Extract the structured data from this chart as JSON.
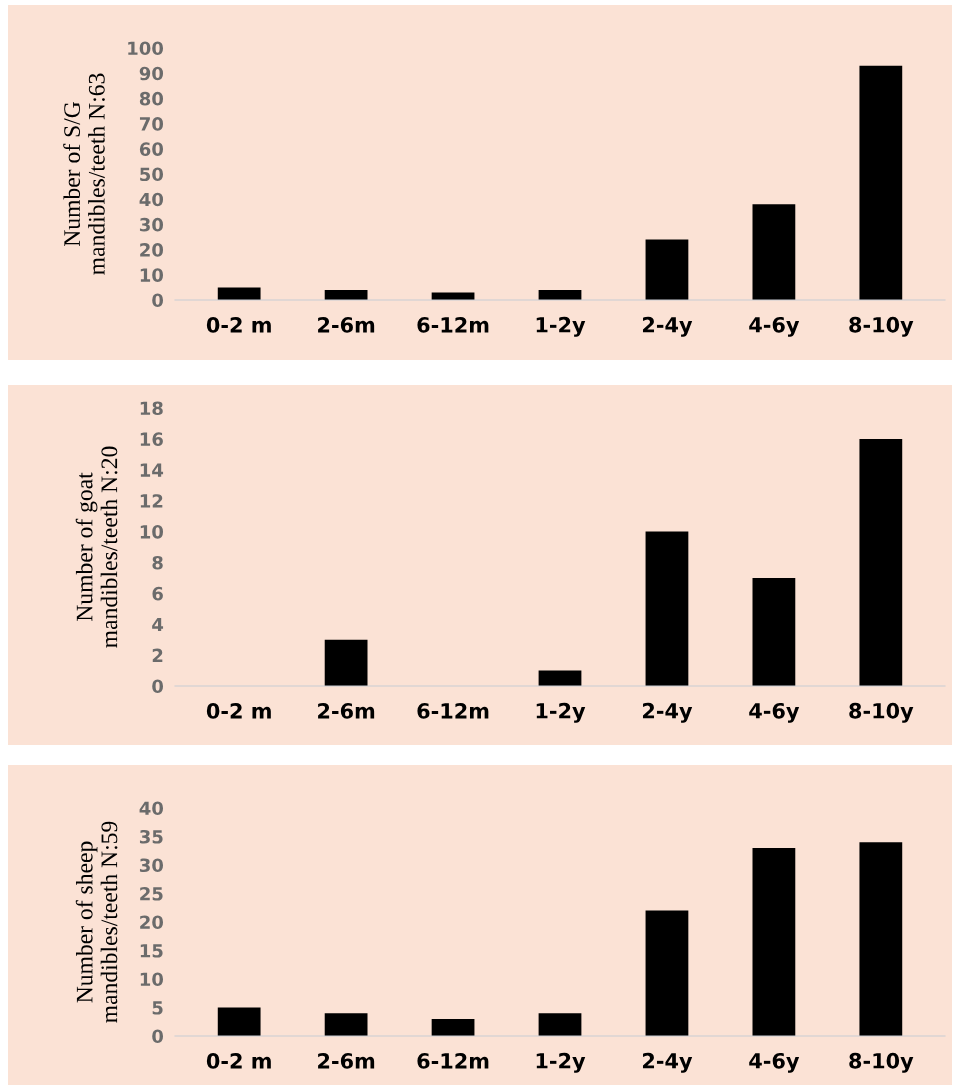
{
  "chart_data": [
    {
      "type": "bar",
      "ylabel": "Number of S/G\nmandibles/teeth N:63",
      "categories": [
        "0-2 m",
        "2-6m",
        "6-12m",
        "1-2y",
        "2-4y",
        "4-6y",
        "8-10y"
      ],
      "values": [
        5,
        4,
        3,
        4,
        24,
        38,
        93
      ],
      "color": "#000000",
      "ylim": [
        0,
        100
      ],
      "yticks": [
        0,
        10,
        20,
        30,
        40,
        50,
        60,
        70,
        80,
        90,
        100
      ],
      "grid": false
    },
    {
      "type": "bar",
      "ylabel": "Number of goat\nmandibles/teeth N:20",
      "categories": [
        "0-2 m",
        "2-6m",
        "6-12m",
        "1-2y",
        "2-4y",
        "4-6y",
        "8-10y"
      ],
      "values": [
        0,
        3,
        0,
        1,
        10,
        7,
        16
      ],
      "color": "#000000",
      "ylim": [
        0,
        18
      ],
      "yticks": [
        0,
        2,
        4,
        6,
        8,
        10,
        12,
        14,
        16,
        18
      ],
      "grid": false
    },
    {
      "type": "bar",
      "ylabel": "Number of sheep\nmandibles/teeth N:59",
      "categories": [
        "0-2 m",
        "2-6m",
        "6-12m",
        "1-2y",
        "2-4y",
        "4-6y",
        "8-10y"
      ],
      "values": [
        5,
        4,
        3,
        4,
        22,
        33,
        34
      ],
      "color": "#000000",
      "ylim": [
        0,
        40
      ],
      "yticks": [
        0,
        5,
        10,
        15,
        20,
        25,
        30,
        35,
        40
      ],
      "grid": false
    }
  ]
}
